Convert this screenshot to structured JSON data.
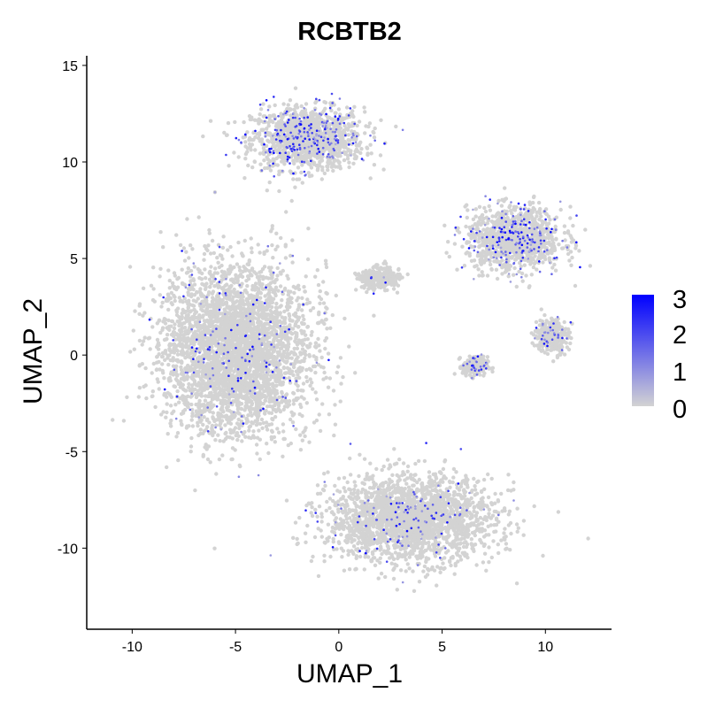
{
  "chart_data": {
    "type": "scatter",
    "title": "RCBTB2",
    "xlabel": "UMAP_1",
    "ylabel": "UMAP_2",
    "xlim": [
      -12.2,
      13.2
    ],
    "ylim": [
      -14.2,
      15.5
    ],
    "x_ticks": [
      -10,
      -5,
      0,
      5,
      10
    ],
    "y_ticks": [
      -10,
      -5,
      0,
      5,
      10,
      15
    ],
    "grid": false,
    "legend": {
      "position": "right",
      "ticks": [
        "3",
        "2",
        "1",
        "0"
      ],
      "range": [
        0,
        3.1
      ]
    },
    "colors": {
      "low": "#d3d3d3",
      "high": "#0000ff"
    },
    "clusters": [
      {
        "id": "top",
        "center": [
          -1.5,
          11.2
        ],
        "spread": [
          2.7,
          1.6
        ],
        "expression": 0.55
      },
      {
        "id": "left-large",
        "center": [
          -5.0,
          0.3
        ],
        "spread": [
          3.5,
          4.3
        ],
        "expression": 0.12
      },
      {
        "id": "bottom",
        "center": [
          3.5,
          -8.5
        ],
        "spread": [
          4.0,
          2.2
        ],
        "expression": 0.15
      },
      {
        "id": "right-upper",
        "center": [
          8.5,
          6.0
        ],
        "spread": [
          2.3,
          1.6
        ],
        "expression": 0.5
      },
      {
        "id": "center-small",
        "center": [
          2.0,
          4.0
        ],
        "spread": [
          1.0,
          0.6
        ],
        "expression": 0.05
      },
      {
        "id": "right-mid",
        "center": [
          10.3,
          1.0
        ],
        "spread": [
          0.8,
          0.9
        ],
        "expression": 0.3
      },
      {
        "id": "right-lower",
        "center": [
          6.6,
          -0.6
        ],
        "spread": [
          0.6,
          0.5
        ],
        "expression": 0.4
      }
    ]
  }
}
